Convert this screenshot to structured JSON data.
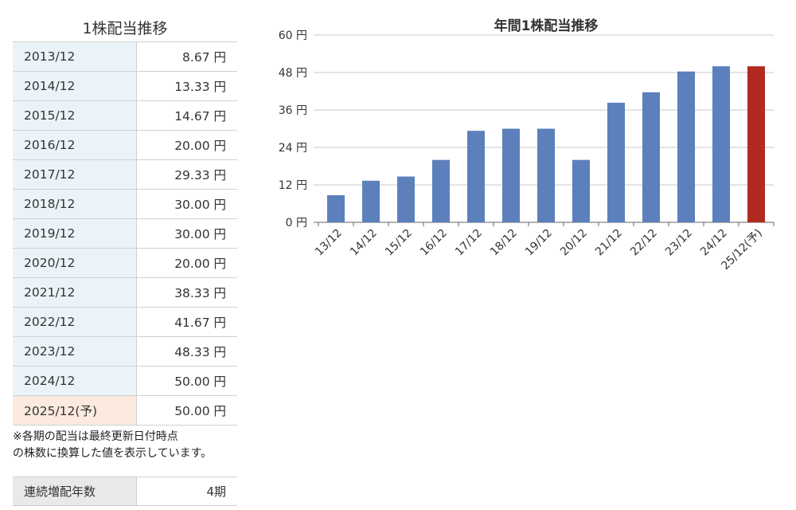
{
  "table": {
    "title": "1株配当推移",
    "rows": [
      {
        "year": "2013/12",
        "value": "8.67 円"
      },
      {
        "year": "2014/12",
        "value": "13.33 円"
      },
      {
        "year": "2015/12",
        "value": "14.67 円"
      },
      {
        "year": "2016/12",
        "value": "20.00 円"
      },
      {
        "year": "2017/12",
        "value": "29.33 円"
      },
      {
        "year": "2018/12",
        "value": "30.00 円"
      },
      {
        "year": "2019/12",
        "value": "30.00 円"
      },
      {
        "year": "2020/12",
        "value": "20.00 円"
      },
      {
        "year": "2021/12",
        "value": "38.33 円"
      },
      {
        "year": "2022/12",
        "value": "41.67 円"
      },
      {
        "year": "2023/12",
        "value": "48.33 円"
      },
      {
        "year": "2024/12",
        "value": "50.00 円"
      },
      {
        "year": "2025/12(予)",
        "value": "50.00 円",
        "forecast": true
      }
    ],
    "note_line1": "※各期の配当は最終更新日付時点",
    "note_line2": "の株数に換算した値を表示しています。"
  },
  "streak": {
    "label": "連続増配年数",
    "value": "4期"
  },
  "colors": {
    "actual_bar": "#5b80bc",
    "forecast_bar": "#b22a1f",
    "year_cell": "#eaf4f8",
    "forecast_cell": "#fbeadd"
  },
  "chart_data": {
    "type": "bar",
    "title": "年間1株配当推移",
    "categories": [
      "13/12",
      "14/12",
      "15/12",
      "16/12",
      "17/12",
      "18/12",
      "19/12",
      "20/12",
      "21/12",
      "22/12",
      "23/12",
      "24/12",
      "25/12(予)"
    ],
    "values": [
      8.67,
      13.33,
      14.67,
      20.0,
      29.33,
      30.0,
      30.0,
      20.0,
      38.33,
      41.67,
      48.33,
      50.0,
      50.0
    ],
    "forecast": [
      false,
      false,
      false,
      false,
      false,
      false,
      false,
      false,
      false,
      false,
      false,
      false,
      true
    ],
    "ylim": [
      0,
      60
    ],
    "yticks": [
      "0 円",
      "12 円",
      "24 円",
      "36 円",
      "48 円",
      "60 円"
    ],
    "ytick_values": [
      0,
      12,
      24,
      36,
      48,
      60
    ],
    "grid": true
  }
}
